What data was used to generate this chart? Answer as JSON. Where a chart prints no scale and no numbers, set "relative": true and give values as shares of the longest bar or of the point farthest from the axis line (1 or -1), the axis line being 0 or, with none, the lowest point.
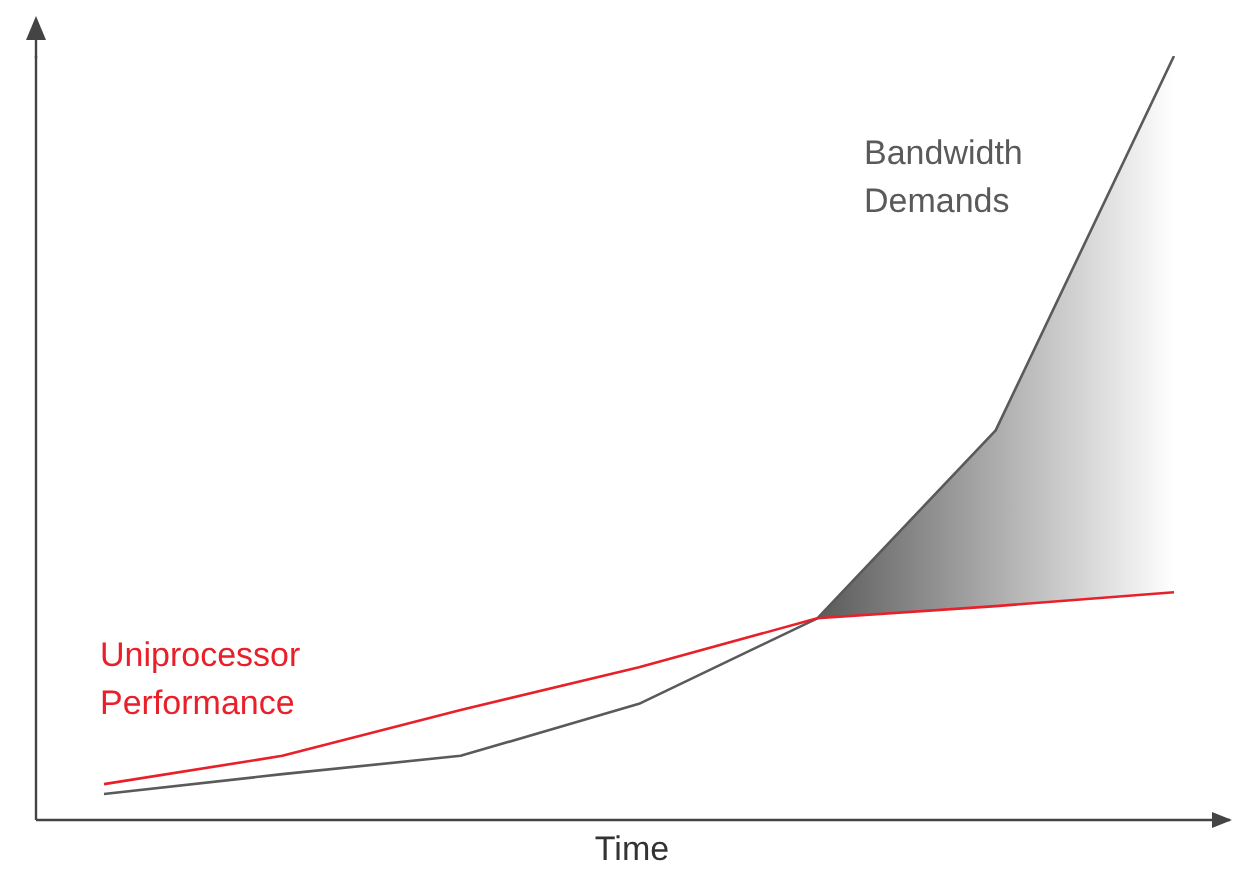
{
  "chart_data": {
    "type": "line",
    "relative": true,
    "xlabel": "Time",
    "categories": [
      null,
      null,
      null,
      null,
      null,
      null,
      null
    ],
    "series": [
      {
        "name": "Bandwidth Demands",
        "color": "#5a5a5a",
        "values": [
          0.034,
          0.06,
          0.084,
          0.152,
          0.264,
          0.51,
          1
        ],
        "lower": [
          null,
          null,
          null,
          null,
          0.264,
          0.28,
          0.298
        ],
        "upper": [
          null,
          null,
          null,
          null,
          0.264,
          0.51,
          1
        ]
      },
      {
        "name": "Uniprocessor Performance",
        "color": "#e8202a",
        "values": [
          0.047,
          0.084,
          0.144,
          0.2,
          0.264,
          0.28,
          0.298
        ]
      }
    ],
    "grid": false,
    "legend": false,
    "marker": "none",
    "line_style": "solid"
  }
}
